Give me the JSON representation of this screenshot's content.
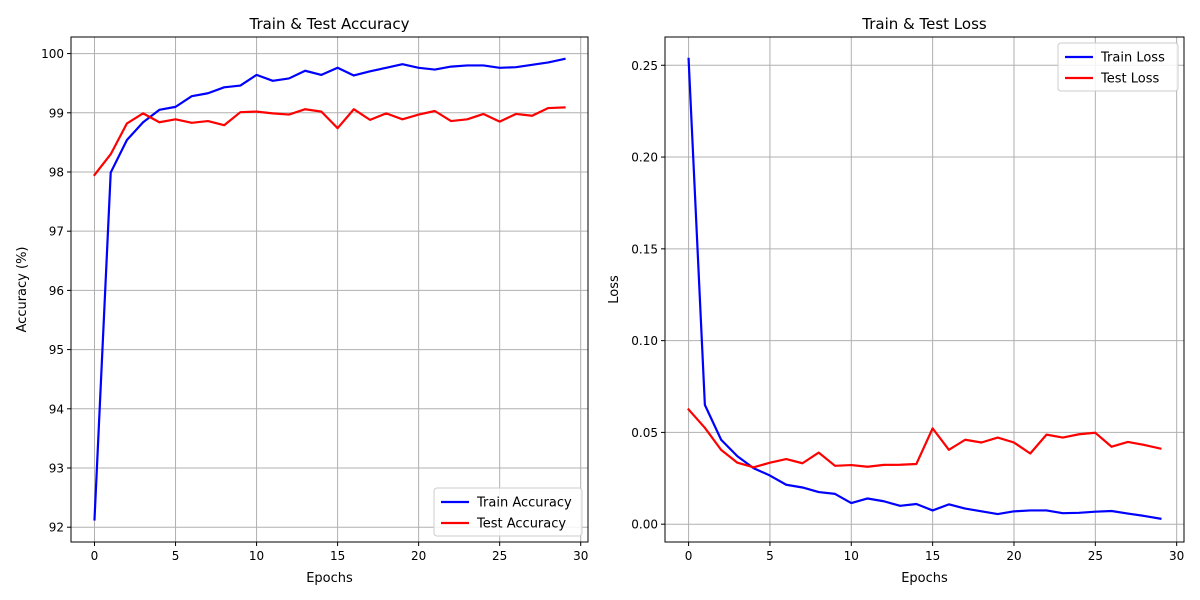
{
  "chart_data": [
    {
      "type": "line",
      "title": "Train & Test Accuracy",
      "xlabel": "Epochs",
      "ylabel": "Accuracy (%)",
      "xlim": [
        -1.45,
        30.45
      ],
      "ylim": [
        91.75,
        100.28
      ],
      "xticks": [
        0,
        5,
        10,
        15,
        20,
        25,
        30
      ],
      "yticks": [
        92,
        93,
        94,
        95,
        96,
        97,
        98,
        99,
        100
      ],
      "grid": true,
      "legend_position": "bottom-right",
      "x": [
        0,
        1,
        2,
        3,
        4,
        5,
        6,
        7,
        8,
        9,
        10,
        11,
        12,
        13,
        14,
        15,
        16,
        17,
        18,
        19,
        20,
        21,
        22,
        23,
        24,
        25,
        26,
        27,
        28,
        29
      ],
      "series": [
        {
          "name": "Train Accuracy",
          "color": "#0000ff",
          "values": [
            92.13,
            97.99,
            98.54,
            98.84,
            99.05,
            99.1,
            99.28,
            99.33,
            99.43,
            99.46,
            99.64,
            99.54,
            99.58,
            99.71,
            99.64,
            99.76,
            99.63,
            99.7,
            99.76,
            99.82,
            99.76,
            99.73,
            99.78,
            99.8,
            99.8,
            99.76,
            99.77,
            99.81,
            99.85,
            99.91
          ]
        },
        {
          "name": "Test Accuracy",
          "color": "#ff0000",
          "values": [
            97.95,
            98.3,
            98.82,
            98.99,
            98.84,
            98.89,
            98.83,
            98.86,
            98.79,
            99.01,
            99.02,
            98.99,
            98.97,
            99.06,
            99.02,
            98.74,
            99.06,
            98.88,
            98.99,
            98.89,
            98.97,
            99.03,
            98.86,
            98.89,
            98.98,
            98.85,
            98.98,
            98.95,
            99.08,
            99.09
          ]
        }
      ]
    },
    {
      "type": "line",
      "title": "Train & Test Loss",
      "xlabel": "Epochs",
      "ylabel": "Loss",
      "xlim": [
        -1.45,
        30.45
      ],
      "ylim": [
        -0.0097,
        0.2654
      ],
      "xticks": [
        0,
        5,
        10,
        15,
        20,
        25,
        30
      ],
      "yticks": [
        0.0,
        0.05,
        0.1,
        0.15,
        0.2,
        0.25
      ],
      "ytick_labels": [
        "0.00",
        "0.05",
        "0.10",
        "0.15",
        "0.20",
        "0.25"
      ],
      "grid": true,
      "legend_position": "top-right",
      "x": [
        0,
        1,
        2,
        3,
        4,
        5,
        6,
        7,
        8,
        9,
        10,
        11,
        12,
        13,
        14,
        15,
        16,
        17,
        18,
        19,
        20,
        21,
        22,
        23,
        24,
        25,
        26,
        27,
        28,
        29
      ],
      "series": [
        {
          "name": "Train Loss",
          "color": "#0000ff",
          "values": [
            0.2535,
            0.065,
            0.046,
            0.037,
            0.0305,
            0.0265,
            0.0215,
            0.02,
            0.0175,
            0.0165,
            0.0115,
            0.014,
            0.0125,
            0.01,
            0.011,
            0.0075,
            0.0108,
            0.0085,
            0.007,
            0.0055,
            0.007,
            0.0075,
            0.0075,
            0.006,
            0.0062,
            0.0068,
            0.0072,
            0.0058,
            0.0045,
            0.003
          ]
        },
        {
          "name": "Test Loss",
          "color": "#ff0000",
          "values": [
            0.0625,
            0.0525,
            0.0405,
            0.0335,
            0.031,
            0.0335,
            0.0355,
            0.0332,
            0.039,
            0.0318,
            0.0322,
            0.0313,
            0.0323,
            0.0324,
            0.0328,
            0.0522,
            0.0405,
            0.046,
            0.0445,
            0.0472,
            0.0445,
            0.0385,
            0.0488,
            0.0472,
            0.049,
            0.0498,
            0.0422,
            0.0448,
            0.0432,
            0.0412
          ]
        }
      ]
    }
  ]
}
